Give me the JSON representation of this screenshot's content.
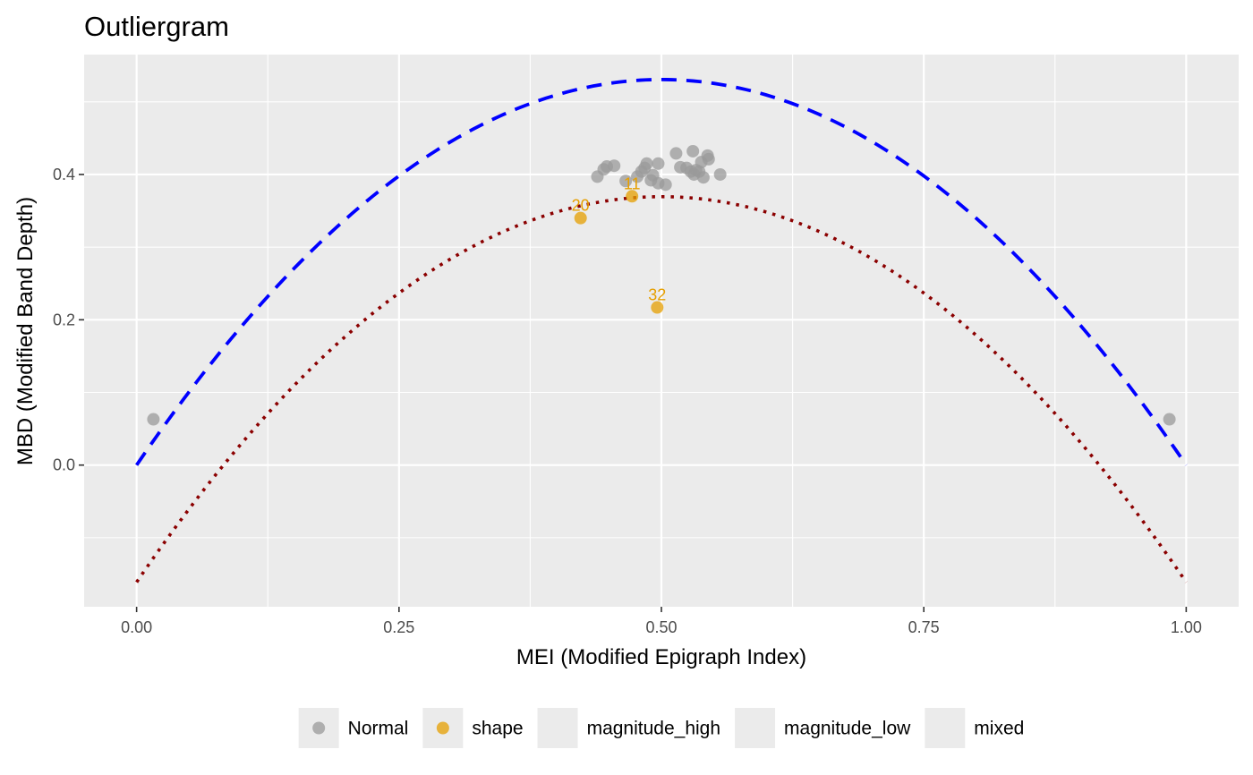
{
  "chart_data": {
    "type": "scatter",
    "title": "Outliergram",
    "xlabel": "MEI (Modified Epigraph Index)",
    "ylabel": "MBD (Modified Band Depth)",
    "xlim": [
      -0.05,
      1.05
    ],
    "ylim": [
      -0.195,
      0.565
    ],
    "x_ticks": [
      {
        "value": 0,
        "label": "0.00"
      },
      {
        "value": 0.25,
        "label": "0.25"
      },
      {
        "value": 0.5,
        "label": "0.50"
      },
      {
        "value": 0.75,
        "label": "0.75"
      },
      {
        "value": 1,
        "label": "1.00"
      }
    ],
    "y_ticks": [
      {
        "value": 0,
        "label": "0.0"
      },
      {
        "value": 0.2,
        "label": "0.2"
      },
      {
        "value": 0.4,
        "label": "0.4"
      }
    ],
    "grid": true,
    "legend_placement": "bottom",
    "curves": [
      {
        "id": "upper",
        "style": "dashed",
        "color": "#0000ff",
        "a0": 0,
        "a1": 2.1226,
        "a2": -2.1226
      },
      {
        "id": "lower",
        "style": "dotted",
        "color": "#8b0000",
        "a0": -0.1612,
        "a1": 2.1226,
        "a2": -2.1226
      }
    ],
    "series": [
      {
        "name": "Normal",
        "color": "#999999",
        "points": [
          {
            "x": 0.016,
            "y": 0.063
          },
          {
            "x": 0.984,
            "y": 0.063
          },
          {
            "x": 0.439,
            "y": 0.397
          },
          {
            "x": 0.445,
            "y": 0.407
          },
          {
            "x": 0.448,
            "y": 0.411
          },
          {
            "x": 0.455,
            "y": 0.412
          },
          {
            "x": 0.466,
            "y": 0.391
          },
          {
            "x": 0.477,
            "y": 0.397
          },
          {
            "x": 0.481,
            "y": 0.404
          },
          {
            "x": 0.484,
            "y": 0.409
          },
          {
            "x": 0.486,
            "y": 0.415
          },
          {
            "x": 0.49,
            "y": 0.392
          },
          {
            "x": 0.492,
            "y": 0.399
          },
          {
            "x": 0.497,
            "y": 0.388
          },
          {
            "x": 0.497,
            "y": 0.415
          },
          {
            "x": 0.504,
            "y": 0.386
          },
          {
            "x": 0.514,
            "y": 0.429
          },
          {
            "x": 0.518,
            "y": 0.41
          },
          {
            "x": 0.524,
            "y": 0.409
          },
          {
            "x": 0.528,
            "y": 0.404
          },
          {
            "x": 0.53,
            "y": 0.432
          },
          {
            "x": 0.531,
            "y": 0.4
          },
          {
            "x": 0.533,
            "y": 0.406
          },
          {
            "x": 0.536,
            "y": 0.404
          },
          {
            "x": 0.538,
            "y": 0.417
          },
          {
            "x": 0.54,
            "y": 0.396
          },
          {
            "x": 0.544,
            "y": 0.426
          },
          {
            "x": 0.545,
            "y": 0.421
          },
          {
            "x": 0.556,
            "y": 0.4
          }
        ]
      },
      {
        "name": "shape",
        "color": "#e69f00",
        "points": [
          {
            "x": 0.423,
            "y": 0.34,
            "label": "20"
          },
          {
            "x": 0.472,
            "y": 0.37,
            "label": "11"
          },
          {
            "x": 0.496,
            "y": 0.217,
            "label": "32"
          }
        ]
      }
    ],
    "legend": [
      {
        "label": "Normal",
        "color": "#999999",
        "has_key": true
      },
      {
        "label": "shape",
        "color": "#e69f00",
        "has_key": true
      },
      {
        "label": "magnitude_high",
        "has_key": false
      },
      {
        "label": "magnitude_low",
        "has_key": false
      },
      {
        "label": "mixed",
        "has_key": false
      }
    ]
  }
}
